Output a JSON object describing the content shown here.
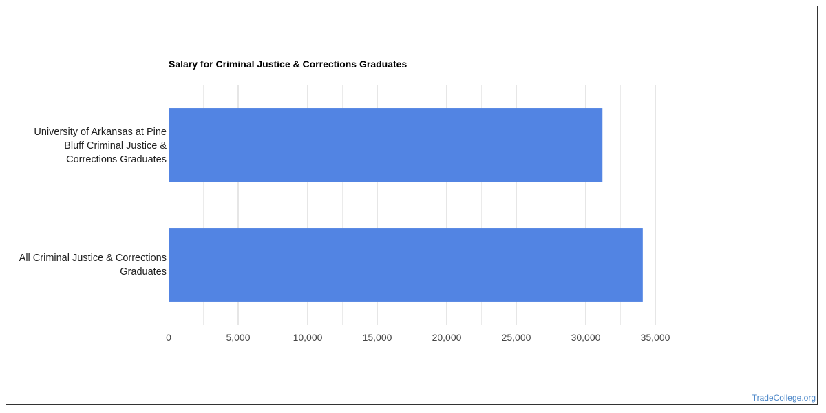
{
  "chart_data": {
    "type": "bar",
    "orientation": "horizontal",
    "title": "Salary for Criminal Justice & Corrections Graduates",
    "categories": [
      "University of Arkansas at Pine Bluff Criminal Justice & Corrections Graduates",
      "All Criminal Justice & Corrections Graduates"
    ],
    "category_label_lines": [
      [
        "University of Arkansas at Pine",
        "Bluff Criminal Justice &",
        "Corrections Graduates"
      ],
      [
        "All Criminal Justice & Corrections",
        "Graduates"
      ]
    ],
    "values": [
      31200,
      34100
    ],
    "xlim": [
      0,
      35000
    ],
    "x_ticks": [
      "0",
      "5,000",
      "10,000",
      "15,000",
      "20,000",
      "25,000",
      "30,000",
      "35,000"
    ],
    "grid": true,
    "bar_color": "#5284e3"
  },
  "watermark": "TradeCollege.org"
}
